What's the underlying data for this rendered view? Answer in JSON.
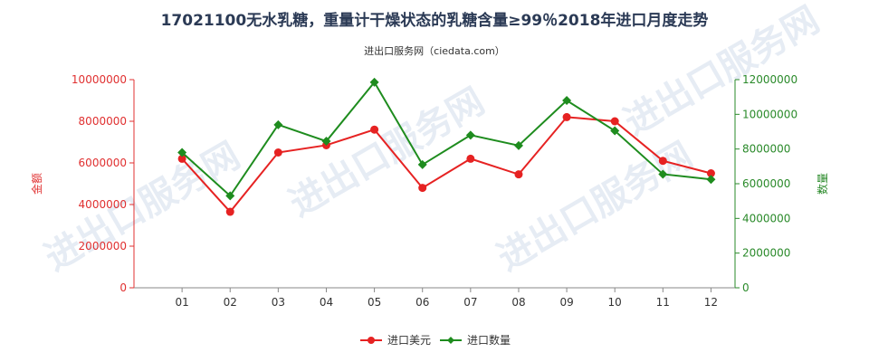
{
  "header": {
    "title": "17021100无水乳糖，重量计干燥状态的乳糖含量≥99％2018年进口月度走势",
    "subtitle": "进出口服务网（ciedata.com）"
  },
  "watermark": {
    "text": "进出口服务网"
  },
  "chart_data": {
    "type": "line",
    "title": "17021100无水乳糖，重量计干燥状态的乳糖含量≥99％2018年进口月度走势",
    "subtitle": "进出口服务网（ciedata.com）",
    "categories": [
      "01",
      "02",
      "03",
      "04",
      "05",
      "06",
      "07",
      "08",
      "09",
      "10",
      "11",
      "12"
    ],
    "ylabel_left": "金额",
    "ylabel_right": "数量",
    "ylim_left": [
      0,
      10000000
    ],
    "ylim_right": [
      0,
      12000000
    ],
    "yticks_left": [
      "0",
      "2000000",
      "4000000",
      "6000000",
      "8000000",
      "10000000"
    ],
    "yticks_right": [
      "0",
      "2000000",
      "4000000",
      "6000000",
      "8000000",
      "10000000",
      "12000000"
    ],
    "series": [
      {
        "name": "进口美元",
        "axis": "left",
        "color": "#e62222",
        "values": [
          6200000,
          3650000,
          6500000,
          6850000,
          7600000,
          4800000,
          6200000,
          5450000,
          8200000,
          8000000,
          6100000,
          5500000
        ]
      },
      {
        "name": "进口数量",
        "axis": "right",
        "color": "#1e8c1e",
        "values": [
          7800000,
          5300000,
          9400000,
          8450000,
          11850000,
          7100000,
          8800000,
          8200000,
          10800000,
          9050000,
          6550000,
          6250000
        ]
      }
    ],
    "legend_position": "bottom-center",
    "grid": false
  }
}
